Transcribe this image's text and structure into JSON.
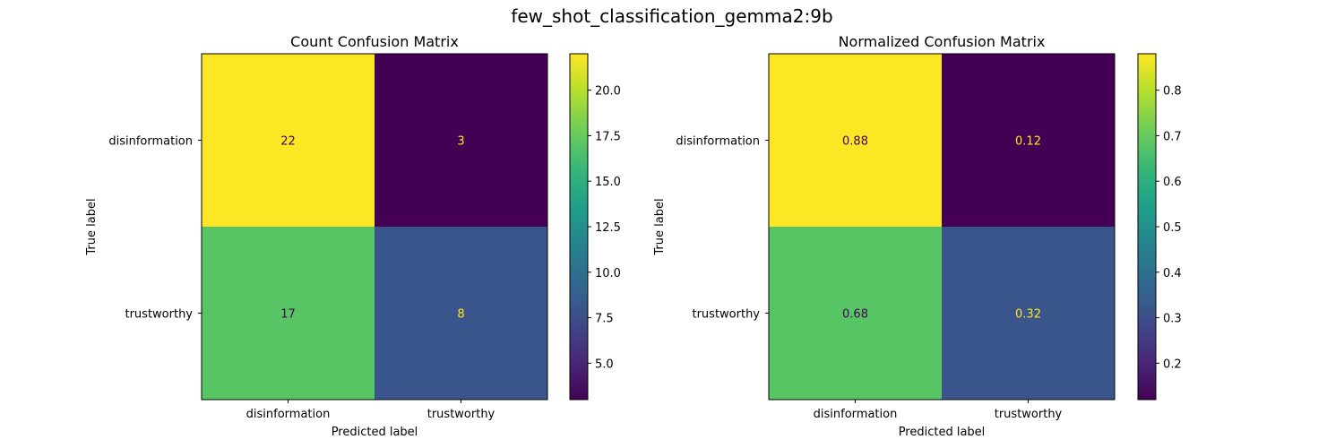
{
  "suptitle": "few_shot_classification_gemma2:9b",
  "colormap": "viridis",
  "chart_data": [
    {
      "type": "heatmap",
      "title": "Count Confusion Matrix",
      "xlabel": "Predicted label",
      "ylabel": "True label",
      "x_categories": [
        "disinformation",
        "trustworthy"
      ],
      "y_categories": [
        "disinformation",
        "trustworthy"
      ],
      "values": [
        [
          22,
          3
        ],
        [
          17,
          8
        ]
      ],
      "cell_labels": [
        [
          "22",
          "3"
        ],
        [
          "17",
          "8"
        ]
      ],
      "colorbar": {
        "vmin": 3,
        "vmax": 22,
        "ticks": [
          5.0,
          7.5,
          10.0,
          12.5,
          15.0,
          17.5,
          20.0
        ],
        "tick_labels": [
          "5.0",
          "7.5",
          "10.0",
          "12.5",
          "15.0",
          "17.5",
          "20.0"
        ]
      }
    },
    {
      "type": "heatmap",
      "title": "Normalized Confusion Matrix",
      "xlabel": "Predicted label",
      "ylabel": "True label",
      "x_categories": [
        "disinformation",
        "trustworthy"
      ],
      "y_categories": [
        "disinformation",
        "trustworthy"
      ],
      "values": [
        [
          0.88,
          0.12
        ],
        [
          0.68,
          0.32
        ]
      ],
      "cell_labels": [
        [
          "0.88",
          "0.12"
        ],
        [
          "0.68",
          "0.32"
        ]
      ],
      "colorbar": {
        "vmin": 0.12,
        "vmax": 0.88,
        "ticks": [
          0.2,
          0.3,
          0.4,
          0.5,
          0.6,
          0.7,
          0.8
        ],
        "tick_labels": [
          "0.2",
          "0.3",
          "0.4",
          "0.5",
          "0.6",
          "0.7",
          "0.8"
        ]
      }
    }
  ]
}
